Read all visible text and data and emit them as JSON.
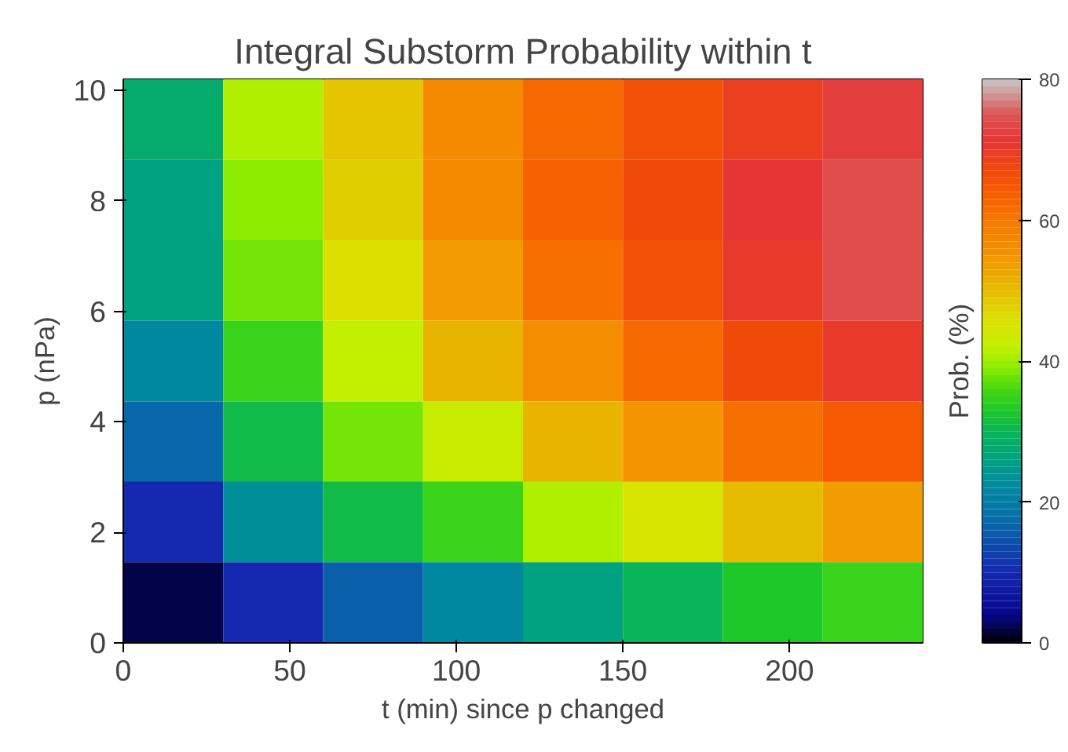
{
  "chart_data": {
    "type": "heatmap",
    "title": "Integral Substorm Probability within t",
    "xlabel": "t (min) since p changed",
    "ylabel": "p (nPa)",
    "clabel": "Prob. (%)",
    "x": [
      15,
      45,
      75,
      105,
      135,
      165,
      195,
      225
    ],
    "y": [
      9.47,
      8.01,
      6.56,
      5.1,
      3.64,
      2.19,
      0.73
    ],
    "cells": [
      [
        28,
        41,
        49,
        57,
        62,
        66,
        69,
        72
      ],
      [
        26,
        39,
        48,
        57,
        63,
        67,
        71,
        74
      ],
      [
        26,
        38,
        46,
        54,
        61,
        66,
        70,
        74
      ],
      [
        22,
        35,
        42,
        51,
        56,
        62,
        67,
        70
      ],
      [
        17,
        31,
        38,
        43,
        51,
        55,
        61,
        64
      ],
      [
        10,
        23,
        31,
        35,
        41,
        45,
        50,
        54
      ],
      [
        2,
        10,
        16,
        22,
        26,
        30,
        33,
        35
      ]
    ],
    "xlim": [
      0,
      240
    ],
    "ylim": [
      0,
      10.2
    ],
    "xticks": [
      0,
      50,
      100,
      150,
      200
    ],
    "yticks": [
      0,
      2,
      4,
      6,
      8,
      10
    ],
    "clim": [
      0,
      80
    ],
    "cticks": [
      0,
      20,
      40,
      60,
      80
    ],
    "grid": false
  }
}
